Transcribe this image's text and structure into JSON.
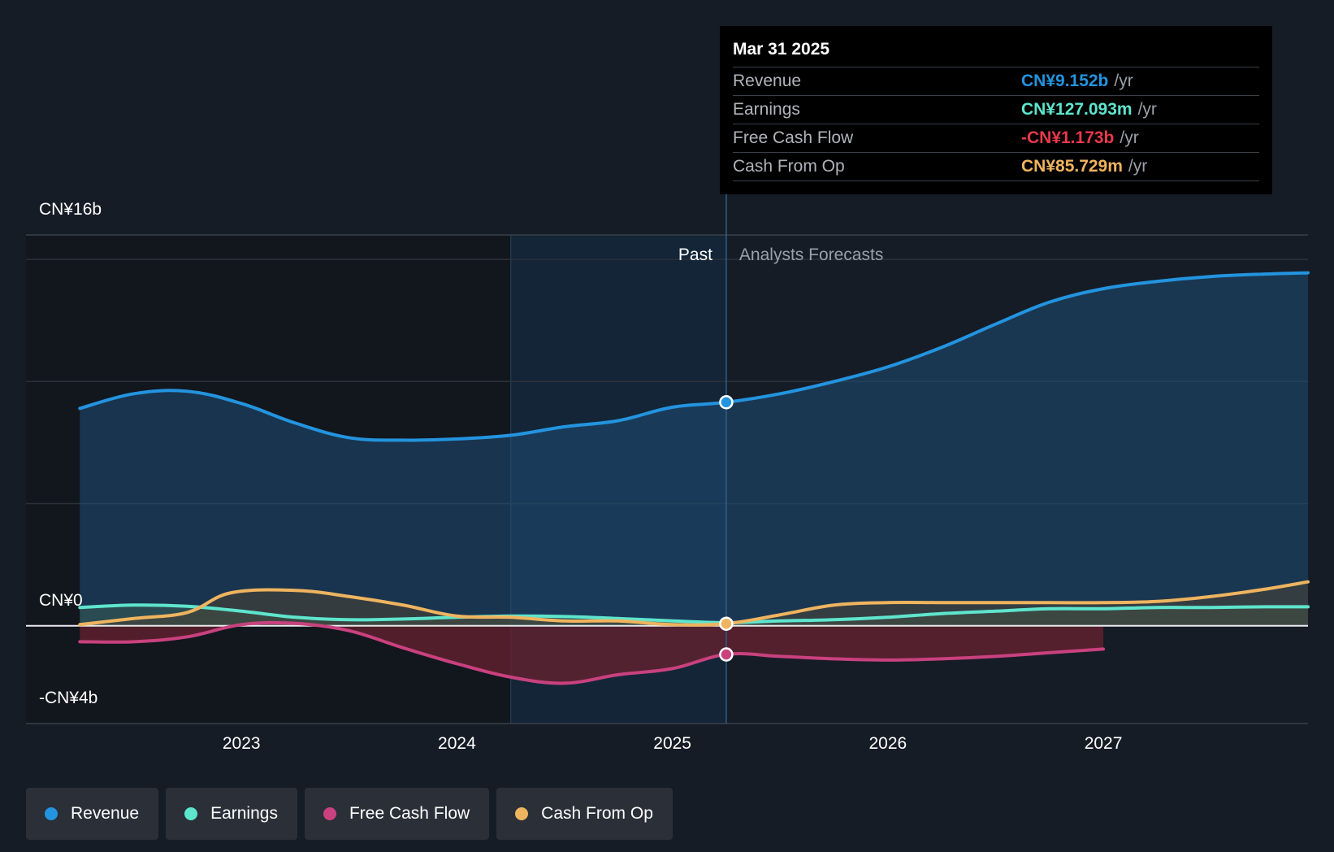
{
  "tooltip": {
    "date": "Mar 31 2025",
    "rows": [
      {
        "label": "Revenue",
        "value": "CN¥9.152b",
        "unit": "/yr",
        "color": "#2394df"
      },
      {
        "label": "Earnings",
        "value": "CN¥127.093m",
        "unit": "/yr",
        "color": "#5ee5cd"
      },
      {
        "label": "Free Cash Flow",
        "value": "-CN¥1.173b",
        "unit": "/yr",
        "color": "#e8394a"
      },
      {
        "label": "Cash From Op",
        "value": "CN¥85.729m",
        "unit": "/yr",
        "color": "#efb45f"
      }
    ]
  },
  "legend": [
    {
      "label": "Revenue",
      "color": "#2394df"
    },
    {
      "label": "Earnings",
      "color": "#5ee5cd"
    },
    {
      "label": "Free Cash Flow",
      "color": "#c9417f"
    },
    {
      "label": "Cash From Op",
      "color": "#efb45f"
    }
  ],
  "chart_data": {
    "type": "line",
    "title": "",
    "past_label": "Past",
    "forecast_label": "Analysts Forecasts",
    "divider_x": 2025.25,
    "highlight_from": 2024.25,
    "xlim": [
      2022.0,
      2027.95
    ],
    "ylim": [
      -4,
      16
    ],
    "y_tick_labels": [
      {
        "value": 16,
        "label": "CN¥16b"
      },
      {
        "value": 0,
        "label": "CN¥0"
      },
      {
        "value": -4,
        "label": "-CN¥4b"
      }
    ],
    "gridlines": [
      15,
      10,
      5
    ],
    "x_ticks": [
      {
        "value": 2023,
        "label": "2023"
      },
      {
        "value": 2024,
        "label": "2024"
      },
      {
        "value": 2025,
        "label": "2025"
      },
      {
        "value": 2026,
        "label": "2026"
      },
      {
        "value": 2027,
        "label": "2027"
      }
    ],
    "series": [
      {
        "name": "Revenue",
        "color": "#2394df",
        "fill": "#1f4e76",
        "marker_value": 9.152,
        "x": [
          2022.25,
          2022.5,
          2022.75,
          2023.0,
          2023.25,
          2023.5,
          2023.75,
          2024.0,
          2024.25,
          2024.5,
          2024.75,
          2025.0,
          2025.25,
          2025.5,
          2025.75,
          2026.0,
          2026.25,
          2026.5,
          2026.75,
          2027.0,
          2027.25,
          2027.5,
          2027.75,
          2027.95
        ],
        "values": [
          8.9,
          9.5,
          9.6,
          9.1,
          8.3,
          7.7,
          7.6,
          7.65,
          7.8,
          8.15,
          8.4,
          8.95,
          9.15,
          9.5,
          10.0,
          10.6,
          11.4,
          12.35,
          13.25,
          13.8,
          14.1,
          14.3,
          14.4,
          14.45
        ]
      },
      {
        "name": "Earnings",
        "color": "#5ee5cd",
        "fill": "#3b5f55",
        "marker_value": 0.127,
        "x": [
          2022.25,
          2022.5,
          2022.75,
          2023.0,
          2023.25,
          2023.5,
          2023.75,
          2024.0,
          2024.25,
          2024.5,
          2024.75,
          2025.0,
          2025.25,
          2025.5,
          2025.75,
          2026.0,
          2026.25,
          2026.5,
          2026.75,
          2027.0,
          2027.25,
          2027.5,
          2027.75,
          2027.95
        ],
        "values": [
          0.75,
          0.85,
          0.8,
          0.6,
          0.35,
          0.25,
          0.28,
          0.35,
          0.4,
          0.38,
          0.3,
          0.2,
          0.13,
          0.2,
          0.25,
          0.35,
          0.5,
          0.6,
          0.7,
          0.7,
          0.75,
          0.75,
          0.78,
          0.78
        ]
      },
      {
        "name": "Free Cash Flow",
        "color": "#c9417f",
        "fill": "#6a2230",
        "marker_value": -1.173,
        "x": [
          2022.25,
          2022.5,
          2022.75,
          2023.0,
          2023.25,
          2023.5,
          2023.75,
          2024.0,
          2024.25,
          2024.5,
          2024.75,
          2025.0,
          2025.25,
          2025.5,
          2025.75,
          2026.0,
          2026.25,
          2026.5,
          2026.75,
          2027.0
        ],
        "values": [
          -0.65,
          -0.65,
          -0.45,
          0.05,
          0.1,
          -0.2,
          -0.9,
          -1.55,
          -2.1,
          -2.35,
          -2.0,
          -1.75,
          -1.17,
          -1.25,
          -1.35,
          -1.4,
          -1.35,
          -1.25,
          -1.1,
          -0.95
        ]
      },
      {
        "name": "Cash From Op",
        "color": "#efb45f",
        "fill": "#4a4433",
        "marker_value": 0.086,
        "x": [
          2022.25,
          2022.5,
          2022.75,
          2022.95,
          2023.25,
          2023.5,
          2023.75,
          2024.0,
          2024.25,
          2024.5,
          2024.75,
          2025.0,
          2025.25,
          2025.5,
          2025.75,
          2026.0,
          2026.25,
          2026.5,
          2026.75,
          2027.0,
          2027.25,
          2027.5,
          2027.75,
          2027.95
        ],
        "values": [
          0.05,
          0.3,
          0.55,
          1.35,
          1.45,
          1.2,
          0.85,
          0.4,
          0.35,
          0.2,
          0.2,
          0.05,
          0.09,
          0.45,
          0.85,
          0.95,
          0.95,
          0.95,
          0.95,
          0.95,
          1.0,
          1.2,
          1.5,
          1.8
        ]
      }
    ]
  }
}
